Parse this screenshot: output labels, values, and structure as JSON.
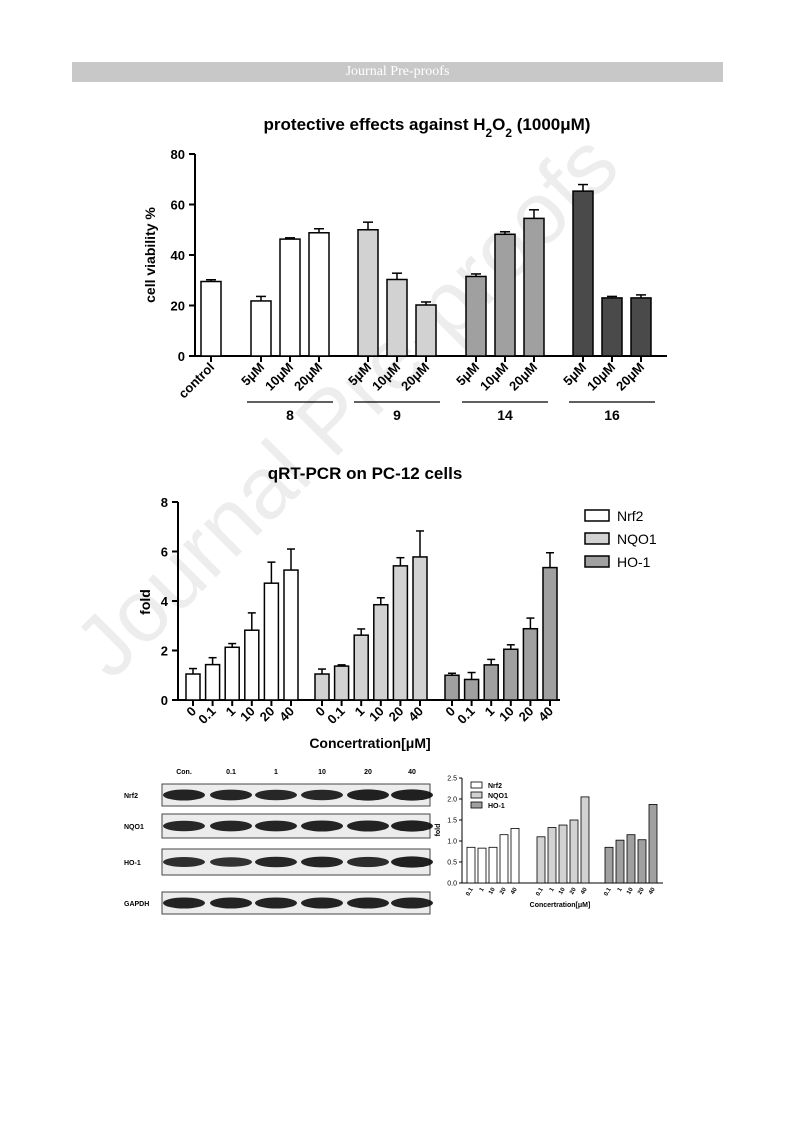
{
  "header": {
    "banner_text": "Journal Pre-proofs"
  },
  "watermark": {
    "text": "Journal Pre-proofs"
  },
  "colors": {
    "white": "#ffffff",
    "light": "#d2d2d2",
    "mid": "#a0a0a0",
    "dark": "#4a4a4a",
    "banner": "#c8c8c8"
  },
  "chart_data": [
    {
      "type": "bar",
      "title_parts": [
        "protective effects against H",
        "2",
        "O",
        "2",
        " (1000",
        "μ",
        "M)"
      ],
      "ylabel": "cell viability %",
      "ylim": [
        0,
        80
      ],
      "yticks": [
        0,
        20,
        40,
        60,
        80
      ],
      "control": {
        "label": "control",
        "value": 29.5,
        "error": 0.7
      },
      "groups": [
        {
          "name": "8",
          "labels": [
            "5μM",
            "10μM",
            "20μM"
          ],
          "values": [
            21.8,
            46.3,
            48.8
          ],
          "errors": [
            1.8,
            0.5,
            1.6
          ]
        },
        {
          "name": "9",
          "labels": [
            "5μM",
            "10μM",
            "20μM"
          ],
          "values": [
            50.0,
            30.3,
            20.2
          ],
          "errors": [
            3.0,
            2.5,
            1.2
          ]
        },
        {
          "name": "14",
          "labels": [
            "5μM",
            "10μM",
            "20μM"
          ],
          "values": [
            31.5,
            48.2,
            54.5
          ],
          "errors": [
            1.0,
            1.0,
            3.4
          ]
        },
        {
          "name": "16",
          "labels": [
            "5μM",
            "10μM",
            "20μM"
          ],
          "values": [
            65.3,
            23.0,
            23.0
          ],
          "errors": [
            2.6,
            0.6,
            1.2
          ]
        }
      ]
    },
    {
      "type": "bar",
      "title": "qRT-PCR on PC-12 cells",
      "xlabel_parts": [
        "Concertration[",
        "μ",
        "M]"
      ],
      "ylabel": "fold",
      "ylim": [
        0,
        8
      ],
      "yticks": [
        0,
        2,
        4,
        6,
        8
      ],
      "categories": [
        "0",
        "0.1",
        "1",
        "10",
        "20",
        "40"
      ],
      "legend": [
        "Nrf2",
        "NQO1",
        "HO-1"
      ],
      "series": [
        {
          "name": "Nrf2",
          "values": [
            1.05,
            1.43,
            2.13,
            2.82,
            4.72,
            5.25
          ],
          "errors": [
            0.22,
            0.28,
            0.15,
            0.7,
            0.85,
            0.85
          ]
        },
        {
          "name": "NQO1",
          "values": [
            1.05,
            1.37,
            2.62,
            3.85,
            5.42,
            5.78
          ],
          "errors": [
            0.2,
            0.05,
            0.25,
            0.28,
            0.33,
            1.05
          ]
        },
        {
          "name": "HO-1",
          "values": [
            1.0,
            0.83,
            1.42,
            2.05,
            2.88,
            5.35
          ],
          "errors": [
            0.08,
            0.28,
            0.22,
            0.18,
            0.43,
            0.6
          ]
        }
      ]
    },
    {
      "type": "bar",
      "xlabel_parts": [
        "Concertration[",
        "μ",
        "M]"
      ],
      "ylabel": "fold",
      "ylim": [
        0,
        2.5
      ],
      "yticks": [
        "0.0",
        "0.5",
        "1.0",
        "1.5",
        "2.0",
        "2.5"
      ],
      "categories": [
        "0.1",
        "1",
        "10",
        "20",
        "40"
      ],
      "legend": [
        "Nrf2",
        "NQO1",
        "HO-1"
      ],
      "series": [
        {
          "name": "Nrf2",
          "values": [
            0.85,
            0.83,
            0.85,
            1.15,
            1.3
          ]
        },
        {
          "name": "NQO1",
          "values": [
            1.1,
            1.32,
            1.38,
            1.5,
            2.05
          ]
        },
        {
          "name": "HO-1",
          "values": [
            0.85,
            1.02,
            1.15,
            1.03,
            1.87
          ]
        }
      ]
    }
  ],
  "western_blot": {
    "lanes": [
      "Con.",
      "0.1",
      "1",
      "10",
      "20",
      "40"
    ],
    "rows": [
      {
        "label": "Nrf2",
        "intensity": [
          0.95,
          0.9,
          0.85,
          0.85,
          1.0,
          1.0
        ]
      },
      {
        "label": "NQO1",
        "intensity": [
          0.85,
          0.9,
          0.9,
          0.95,
          0.95,
          1.0
        ]
      },
      {
        "label": "HO-1",
        "intensity": [
          0.7,
          0.6,
          0.85,
          0.9,
          0.75,
          1.0
        ]
      },
      {
        "label": "GAPDH",
        "intensity": [
          0.95,
          0.95,
          0.95,
          0.95,
          0.95,
          0.95
        ]
      }
    ]
  }
}
